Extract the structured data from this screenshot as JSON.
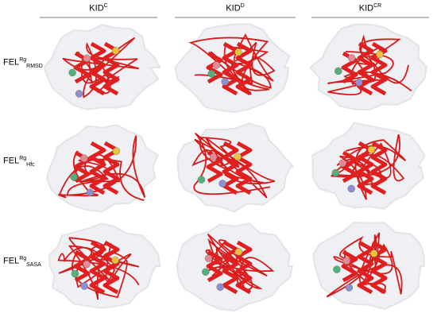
{
  "columns": [
    {
      "base": "KID",
      "sup": "C"
    },
    {
      "base": "KID",
      "sup": "D"
    },
    {
      "base": "KID",
      "sup": "CR"
    }
  ],
  "rows": [
    {
      "base": "FEL",
      "sup": "Rg",
      "sub": "RMSD"
    },
    {
      "base": "FEL",
      "sup": "Rg",
      "sub": "Hfc"
    },
    {
      "base": "FEL",
      "sup": "Rg",
      "sub": "SASA"
    }
  ]
}
